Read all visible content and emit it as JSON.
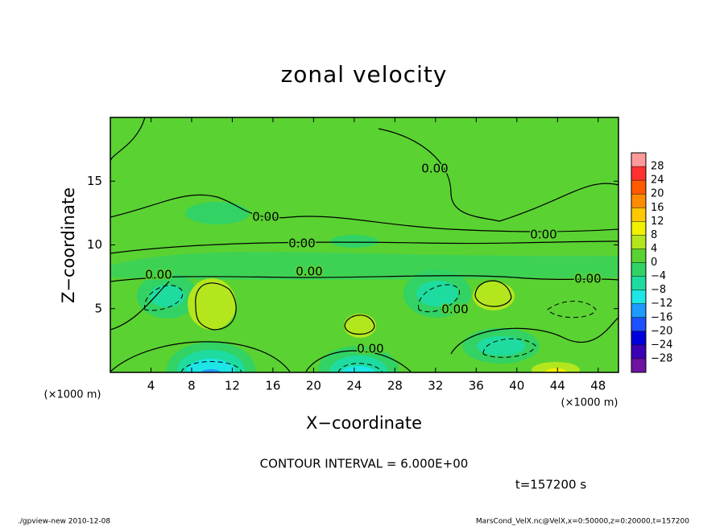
{
  "chart_data": {
    "type": "contour",
    "title": "zonal velocity",
    "x_label": "X−coordinate",
    "y_label": "Z−coordinate",
    "x_unit": "(×1000 m)",
    "xlim": [
      0,
      50
    ],
    "ylim": [
      0,
      20
    ],
    "xticks": [
      4,
      8,
      12,
      16,
      20,
      24,
      28,
      32,
      36,
      40,
      44,
      48
    ],
    "yticks": [
      5,
      10,
      15
    ],
    "levels": [
      28,
      24,
      20,
      16,
      12,
      8,
      4,
      0,
      {
        "value": -4,
        "label": "−4"
      },
      {
        "value": -8,
        "label": "−8"
      },
      {
        "value": -12,
        "label": "−12"
      },
      {
        "value": -16,
        "label": "−16"
      },
      {
        "value": -20,
        "label": "−20"
      },
      {
        "value": -24,
        "label": "−24"
      },
      {
        "value": -28,
        "label": "−28"
      }
    ],
    "colors": [
      "#ff9a9a",
      "#ff3030",
      "#ff5a00",
      "#ff8c00",
      "#ffc800",
      "#f0f000",
      "#b4e61e",
      "#5ad232",
      "#32d264",
      "#1edca0",
      "#1ee6e6",
      "#1e9bff",
      "#1e50ff",
      "#0000dc",
      "#3c00b4",
      "#6e14a0"
    ],
    "contour_label": "0.00",
    "contour_interval": "CONTOUR INTERVAL = 6.000E+00",
    "time": "t=157200 s",
    "footer_left": "./gpview-new  2010-12-08",
    "footer_right": "MarsCond_VelX.nc@VelX,x=0:50000,z=0:20000,t=157200"
  }
}
